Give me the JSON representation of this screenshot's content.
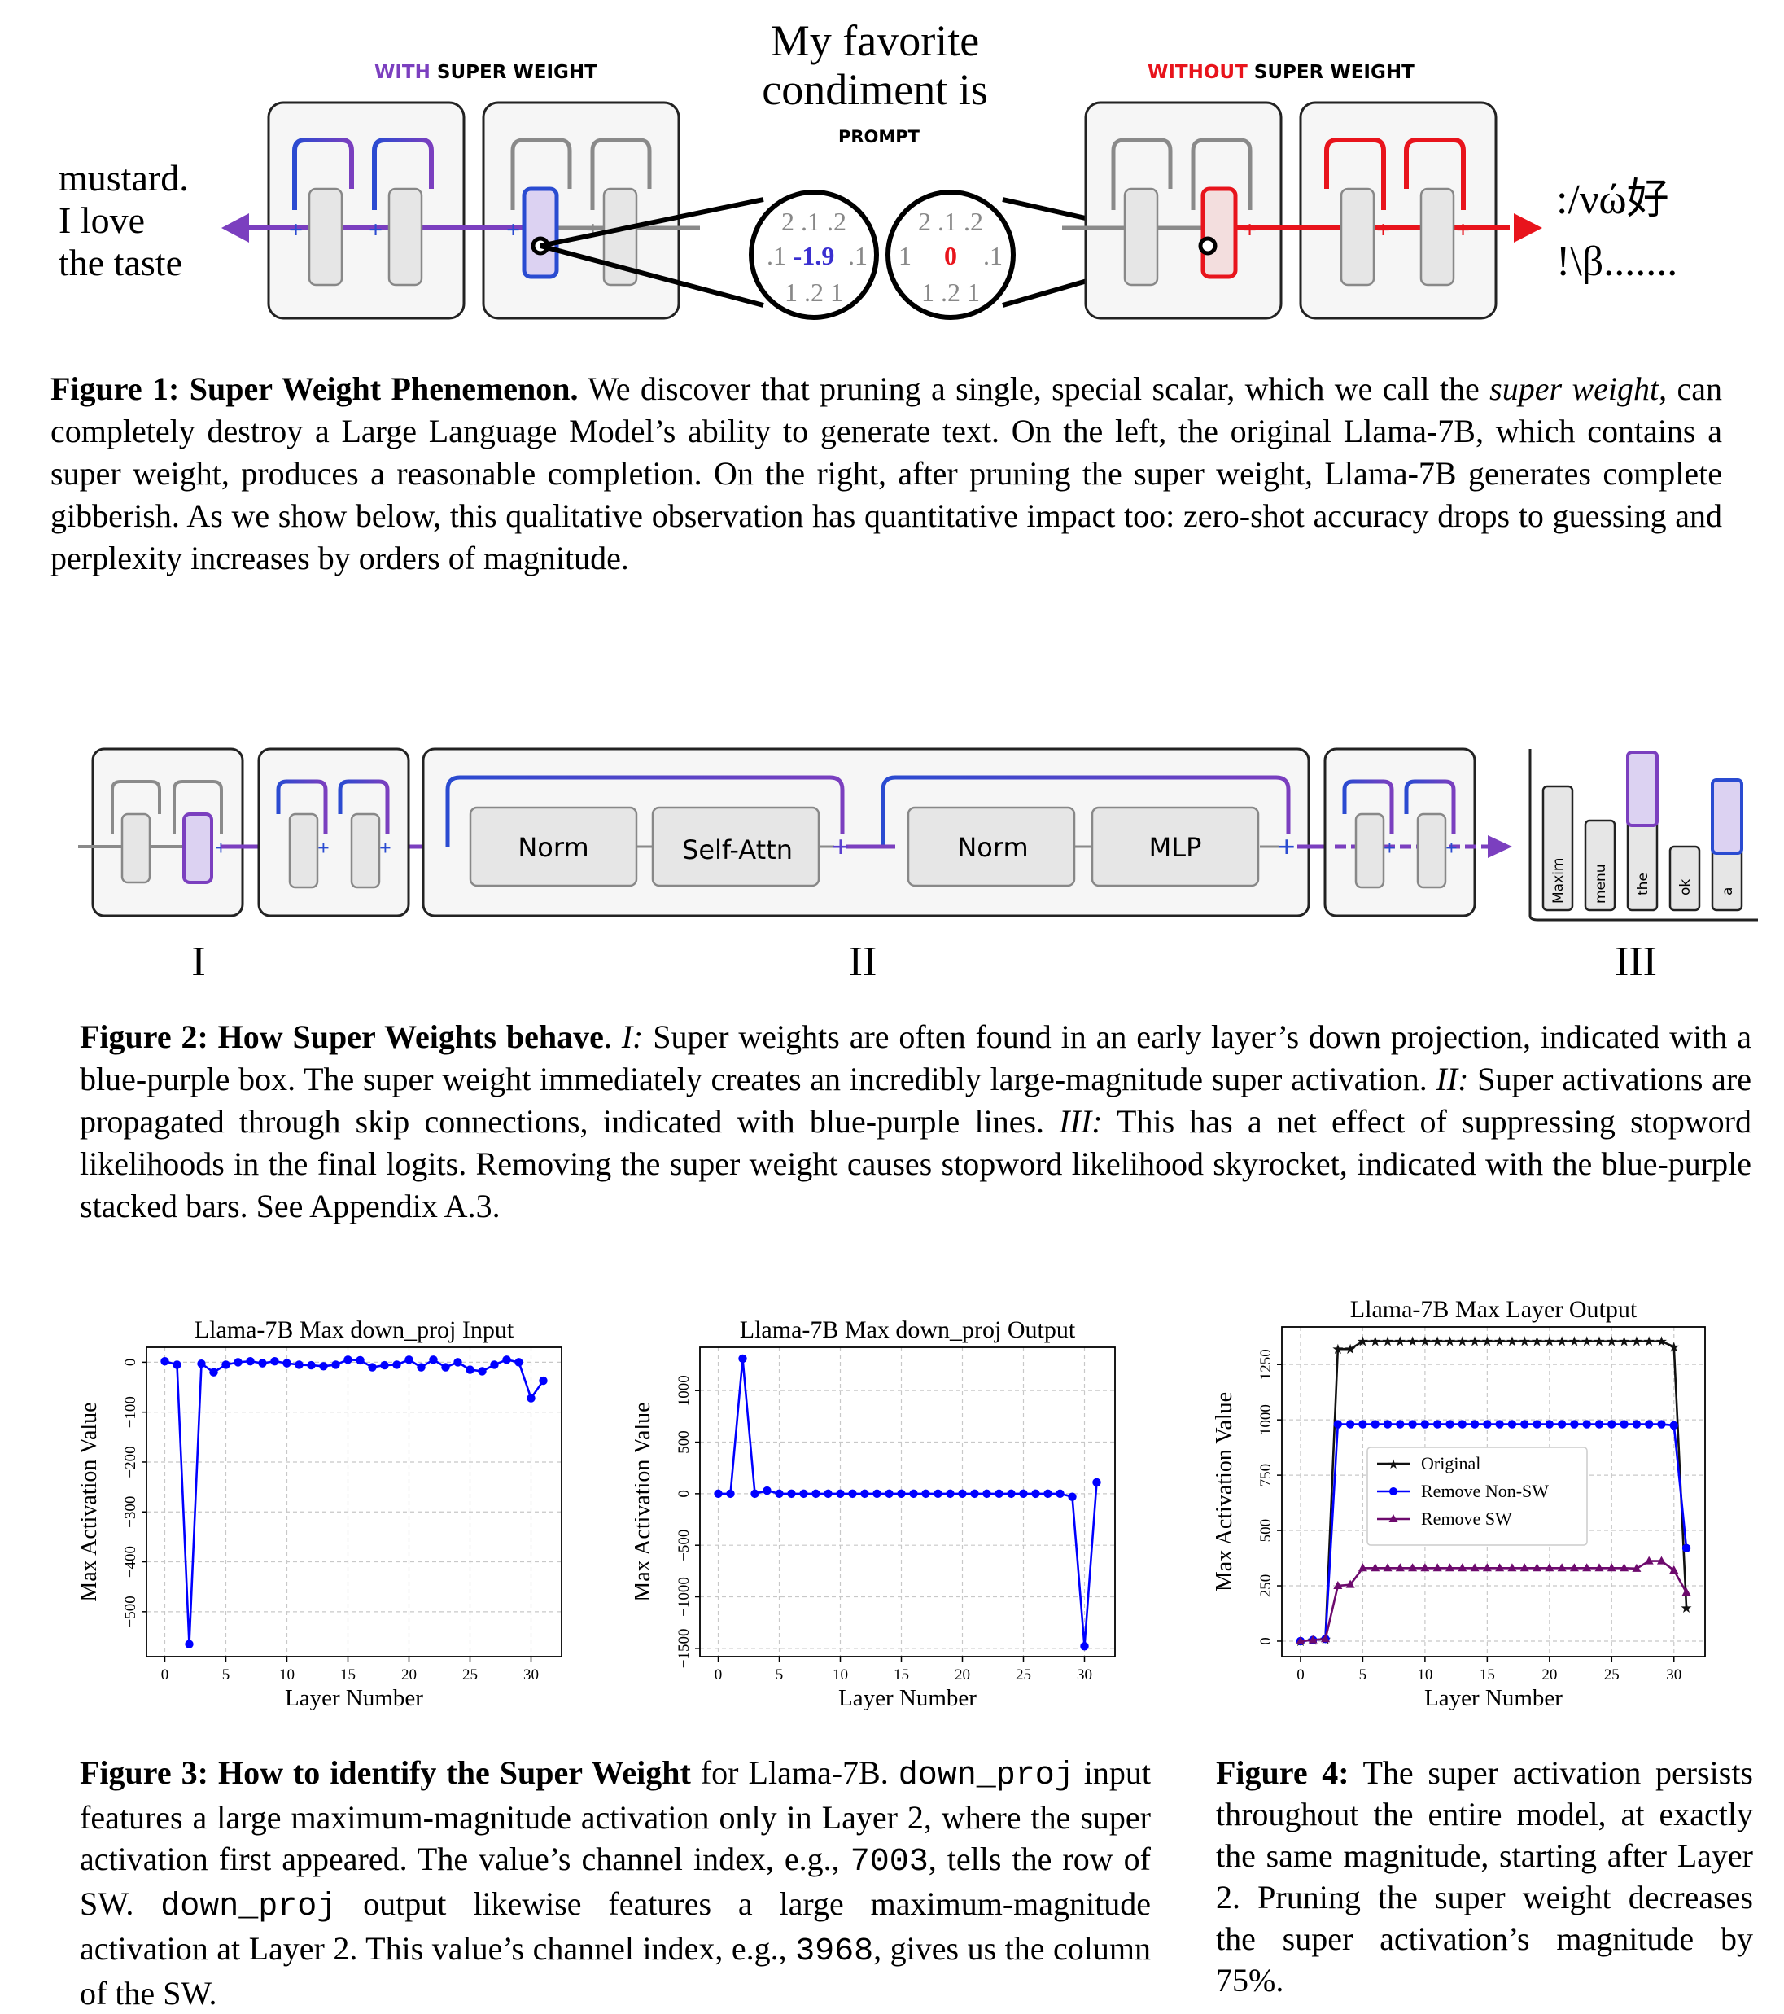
{
  "figure1": {
    "with_label_a": "WITH",
    "with_label_b": " SUPER WEIGHT",
    "without_label_a": "WITHOUT",
    "without_label_b": " SUPER WEIGHT",
    "prompt_line1": "My favorite",
    "prompt_line2": "condiment is",
    "prompt_tag": "PROMPT",
    "output_good": [
      "mustard.",
      "I love",
      "the taste"
    ],
    "output_bad": [
      ":/νώ好",
      "!\\β......."
    ],
    "zoom_left": {
      "top": "2  .1  .2",
      "mid_l": ".1",
      "mid_v": "-1.9",
      "mid_r": ".1",
      "bot": "1  .2  1"
    },
    "zoom_right": {
      "top": "2  .1  .2",
      "mid_l": "1",
      "mid_v": "0",
      "mid_r": ".1",
      "bot": "1  .2  1"
    },
    "colors": {
      "purple": "#7b3fbf",
      "blue": "#2a4bd1",
      "red": "#e8141c",
      "gray": "#8a8a8a"
    }
  },
  "caption1": {
    "label": "Figure 1:",
    "title": "Super Weight Phenemenon.",
    "t1": " We discover that pruning a single, special scalar, which we call the ",
    "em": "super weight",
    "t2": ", can completely destroy a Large Language Model’s ability to generate text. On the left, the original Llama-7B, which contains a super weight, produces a reasonable completion. On the right, after pruning the super weight, Llama-7B generates complete gibberish. As we show below, this qualitative observation has quantitative impact too: zero-shot accuracy drops to guessing and perplexity increases by orders of magnitude."
  },
  "figure2": {
    "norm1": "Norm",
    "attn": "Self-Attn",
    "norm2": "Norm",
    "mlp": "MLP",
    "tokens": [
      "Maxim",
      "menu",
      "the",
      "ok",
      "a"
    ],
    "roman": [
      "I",
      "II",
      "III"
    ]
  },
  "caption2": {
    "label": "Figure 2:",
    "title": "How Super Weights behave",
    "t0": ". ",
    "i1": "I:",
    "t1": " Super weights are often found in an early layer’s down projection, indicated with a blue-purple box. The super weight immediately creates an incredibly large-magnitude super activation. ",
    "i2": "II:",
    "t2": " Super activations are propagated through skip connections, indicated with blue-purple lines. ",
    "i3": "III:",
    "t3": " This has a net effect of suppressing stopword likelihoods in the final logits. Removing the super weight causes stopword likelihood skyrocket, indicated with the blue-purple stacked bars. See Appendix A.3."
  },
  "chart_data": [
    {
      "type": "line",
      "title": "Llama-7B Max down_proj Input",
      "xlabel": "Layer Number",
      "ylabel": "Max Activation Value",
      "xlim": [
        -1.5,
        32.5
      ],
      "ylim": [
        -590,
        30
      ],
      "xticks": [
        0,
        5,
        10,
        15,
        20,
        25,
        30
      ],
      "yticks": [
        0,
        -100,
        -200,
        -300,
        -400,
        -500
      ],
      "ytick_labels": [
        "0",
        "−100",
        "−200",
        "−300",
        "−400",
        "−500"
      ],
      "grid": true,
      "series": [
        {
          "color": "#0000ff",
          "x": [
            0,
            1,
            2,
            3,
            4,
            5,
            6,
            7,
            8,
            9,
            10,
            11,
            12,
            13,
            14,
            15,
            16,
            17,
            18,
            19,
            20,
            21,
            22,
            23,
            24,
            25,
            26,
            27,
            28,
            29,
            30,
            31
          ],
          "values": [
            2,
            -5,
            -565,
            -3,
            -20,
            -5,
            0,
            2,
            -2,
            2,
            -2,
            -5,
            -6,
            -8,
            -5,
            5,
            4,
            -10,
            -6,
            -5,
            5,
            -10,
            5,
            -10,
            0,
            -15,
            -18,
            -5,
            5,
            0,
            -72,
            -37
          ]
        }
      ]
    },
    {
      "type": "line",
      "title": "Llama-7B Max down_proj Output",
      "xlabel": "Layer Number",
      "ylabel": "Max Activation Value",
      "xlim": [
        -1.5,
        32.5
      ],
      "ylim": [
        -1580,
        1420
      ],
      "xticks": [
        0,
        5,
        10,
        15,
        20,
        25,
        30
      ],
      "yticks": [
        1000,
        500,
        0,
        -500,
        -1000,
        -1500
      ],
      "ytick_labels": [
        "1000",
        "500",
        "0",
        "−500",
        "−1000",
        "−1500"
      ],
      "grid": true,
      "series": [
        {
          "color": "#0000ff",
          "x": [
            0,
            1,
            2,
            3,
            4,
            5,
            6,
            7,
            8,
            9,
            10,
            11,
            12,
            13,
            14,
            15,
            16,
            17,
            18,
            19,
            20,
            21,
            22,
            23,
            24,
            25,
            26,
            27,
            28,
            29,
            30,
            31
          ],
          "values": [
            0,
            0,
            1310,
            0,
            30,
            0,
            0,
            0,
            0,
            0,
            0,
            0,
            0,
            0,
            0,
            0,
            0,
            0,
            0,
            0,
            0,
            0,
            0,
            0,
            0,
            0,
            0,
            0,
            0,
            -30,
            -1480,
            110
          ]
        }
      ]
    },
    {
      "type": "line",
      "title": "Llama-7B Max Layer Output",
      "xlabel": "Layer Number",
      "ylabel": "Max Activation Value",
      "xlim": [
        -1.5,
        32.5
      ],
      "ylim": [
        -70,
        1420
      ],
      "xticks": [
        0,
        5,
        10,
        15,
        20,
        25,
        30
      ],
      "yticks": [
        0,
        250,
        500,
        750,
        1000,
        1250
      ],
      "ytick_labels": [
        "0",
        "250",
        "500",
        "750",
        "1000",
        "1250"
      ],
      "grid": true,
      "legend_position": "center-left",
      "series": [
        {
          "name": "Original",
          "color": "#111111",
          "marker": "star",
          "x": [
            0,
            1,
            2,
            3,
            4,
            5,
            6,
            7,
            8,
            9,
            10,
            11,
            12,
            13,
            14,
            15,
            16,
            17,
            18,
            19,
            20,
            21,
            22,
            23,
            24,
            25,
            26,
            27,
            28,
            29,
            30,
            31
          ],
          "values": [
            0,
            5,
            10,
            1320,
            1320,
            1355,
            1355,
            1355,
            1355,
            1355,
            1355,
            1355,
            1355,
            1355,
            1355,
            1355,
            1355,
            1355,
            1355,
            1355,
            1355,
            1355,
            1355,
            1355,
            1355,
            1355,
            1355,
            1355,
            1355,
            1355,
            1330,
            150
          ]
        },
        {
          "name": "Remove Non-SW",
          "color": "#0000ff",
          "marker": "circle",
          "x": [
            0,
            1,
            2,
            3,
            4,
            5,
            6,
            7,
            8,
            9,
            10,
            11,
            12,
            13,
            14,
            15,
            16,
            17,
            18,
            19,
            20,
            21,
            22,
            23,
            24,
            25,
            26,
            27,
            28,
            29,
            30,
            31
          ],
          "values": [
            0,
            5,
            10,
            980,
            980,
            980,
            980,
            980,
            980,
            980,
            980,
            980,
            980,
            980,
            980,
            980,
            980,
            980,
            980,
            980,
            980,
            980,
            980,
            980,
            980,
            980,
            980,
            980,
            980,
            980,
            975,
            420
          ]
        },
        {
          "name": "Remove SW",
          "color": "#6d0a6d",
          "marker": "triangle",
          "x": [
            0,
            1,
            2,
            3,
            4,
            5,
            6,
            7,
            8,
            9,
            10,
            11,
            12,
            13,
            14,
            15,
            16,
            17,
            18,
            19,
            20,
            21,
            22,
            23,
            24,
            25,
            26,
            27,
            28,
            29,
            30,
            31
          ],
          "values": [
            0,
            5,
            10,
            250,
            255,
            330,
            330,
            330,
            330,
            330,
            330,
            330,
            330,
            330,
            330,
            330,
            330,
            330,
            330,
            330,
            330,
            330,
            330,
            330,
            330,
            330,
            330,
            328,
            362,
            362,
            320,
            220
          ]
        }
      ]
    }
  ],
  "caption3": {
    "label": "Figure 3:",
    "title": "How to identify the Super Weight",
    "t1": " for Llama-7B. ",
    "c1": "down_proj",
    "t2": " input features a large maximum-magnitude activation only in Layer 2, where the super activation first appeared. The value’s channel index, e.g., ",
    "c2": "7003",
    "t3": ", tells the row of SW. ",
    "c3": "down_proj",
    "t4": " output likewise features a large maximum-magnitude activation at Layer 2. This value’s channel index, e.g., ",
    "c4": "3968",
    "t5": ", gives us the column of the SW."
  },
  "caption4": {
    "label": "Figure 4:",
    "t1": " The super activation persists throughout the entire model, at exactly the same magnitude, starting after Layer 2. Pruning the super weight decreases the super activation’s magnitude by 75%."
  }
}
